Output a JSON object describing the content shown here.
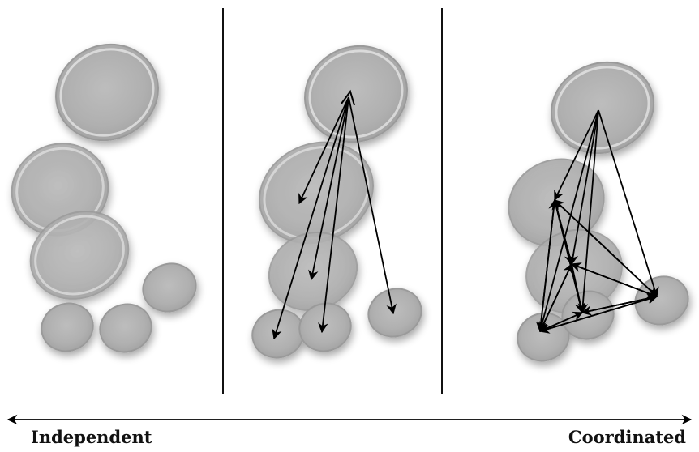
{
  "scale_labels": {
    "left": "Independent",
    "right": "Coordinated"
  },
  "colors": {
    "ellipse_fill": "#b8b8b8",
    "ellipse_edge": "#9a9a9a",
    "ellipse_highlight": "#ececec",
    "divider": "#111111",
    "arrow": "#000000",
    "text": "#111111",
    "background": "#ffffff"
  }
}
